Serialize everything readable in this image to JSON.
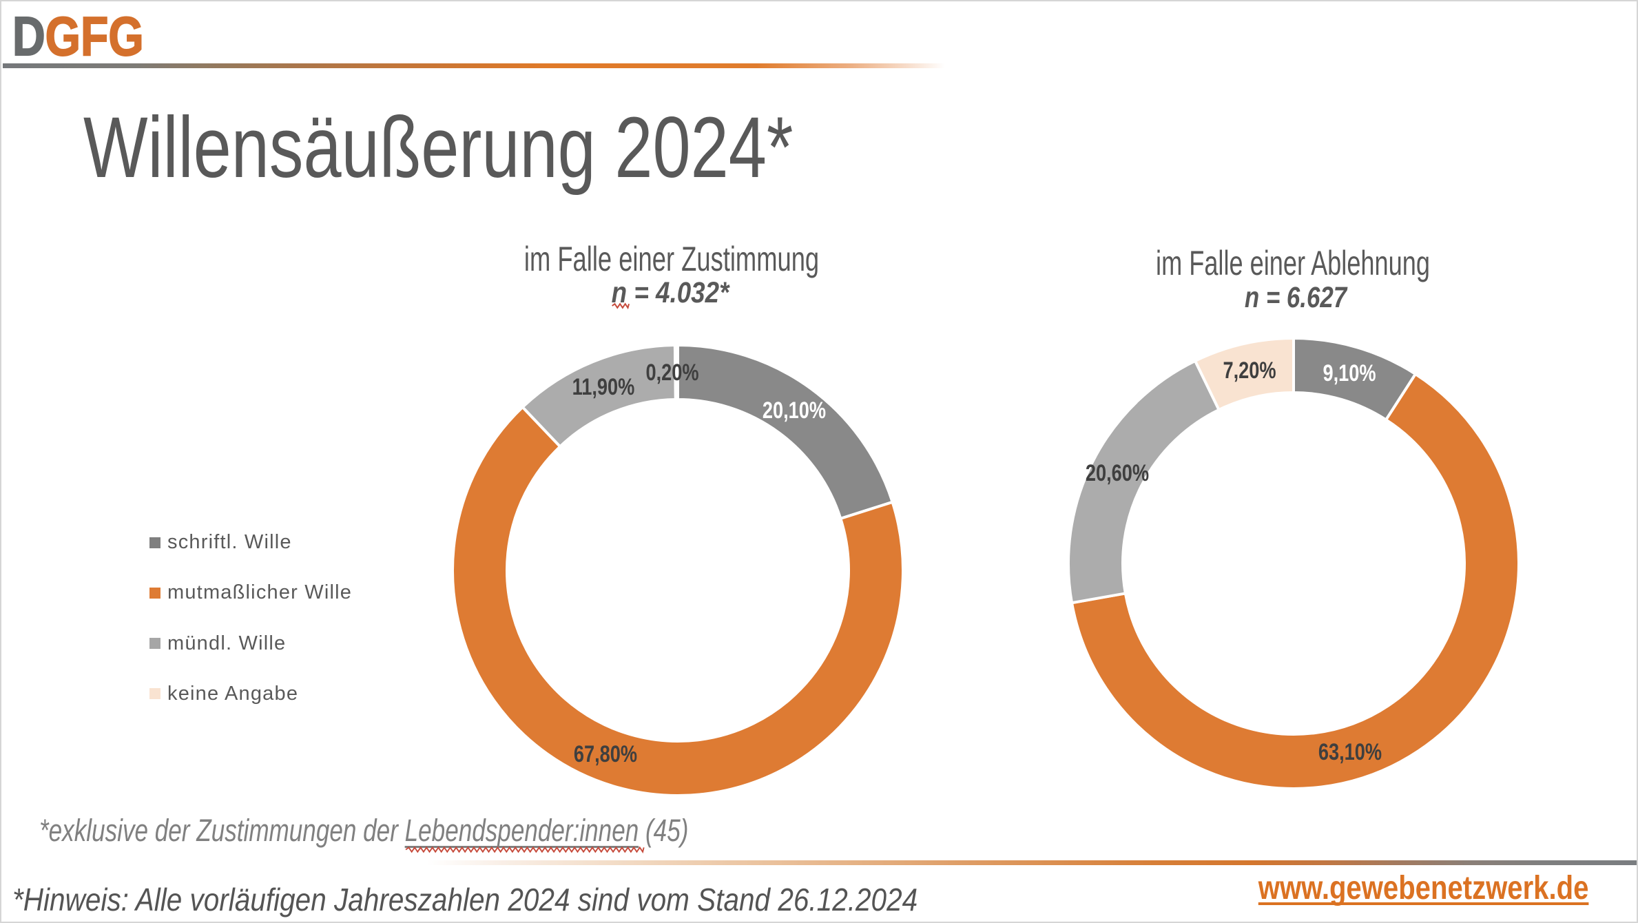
{
  "palette": {
    "logo_gray": "#686B6C",
    "logo_orange": "#D4702C",
    "title_gray": "#595959",
    "label_dark": "#3F3F3F",
    "label_light": "#FFFFFF",
    "website_orange": "#DB7222",
    "squiggle_red": "#C64A3B",
    "slice_dark_gray": "#898989",
    "slice_orange": "#DE7B33",
    "slice_light_gray": "#ACACAC",
    "slice_cream": "#F9E3D1",
    "legend_dark_gray": "#7F7F7F",
    "legend_orange": "#DE7B33",
    "legend_light_gray": "#A6A6A6",
    "legend_cream": "#F9E3D1"
  },
  "header": {
    "logo_prefix": "D",
    "logo_suffix": "GFG",
    "title": "Willensäußerung 2024*"
  },
  "legend": {
    "position": "left",
    "items": [
      {
        "label": "schriftl. Wille",
        "color": "#7F7F7F"
      },
      {
        "label": "mutmaßlicher Wille",
        "color": "#DE7B33"
      },
      {
        "label": "mündl. Wille",
        "color": "#A6A6A6"
      },
      {
        "label": "keine Angabe",
        "color": "#F9E3D1"
      }
    ]
  },
  "chart_data": [
    {
      "type": "pie",
      "variant": "donut",
      "title": "im Falle einer Zustimmung",
      "subtitle": "n = 4.032*",
      "subtitle_spellcheck_underline": true,
      "categories": [
        "schriftl. Wille",
        "mutmaßlicher Wille",
        "mündl. Wille",
        "keine Angabe"
      ],
      "values": [
        20.1,
        67.8,
        11.9,
        0.2
      ],
      "labels": [
        "20,10%",
        "67,80%",
        "11,90%",
        "0,20%"
      ],
      "colors": [
        "#898989",
        "#DE7B33",
        "#ACACAC",
        "#F9E3D1"
      ],
      "label_colors": [
        "#FFFFFF",
        "#3F3F3F",
        "#3F3F3F",
        "#3F3F3F"
      ],
      "hole": 0.76,
      "start_angle_deg": 0,
      "legend_position": "left"
    },
    {
      "type": "pie",
      "variant": "donut",
      "title": "im Falle einer Ablehnung",
      "subtitle": "n = 6.627",
      "subtitle_spellcheck_underline": false,
      "categories": [
        "schriftl. Wille",
        "mutmaßlicher Wille",
        "mündl. Wille",
        "keine Angabe"
      ],
      "values": [
        9.1,
        63.1,
        20.6,
        7.2
      ],
      "labels": [
        "9,10%",
        "63,10%",
        "20,60%",
        "7,20%"
      ],
      "colors": [
        "#898989",
        "#DE7B33",
        "#ACACAC",
        "#F9E3D1"
      ],
      "label_colors": [
        "#FFFFFF",
        "#3F3F3F",
        "#3F3F3F",
        "#3F3F3F"
      ],
      "hole": 0.76,
      "start_angle_deg": 0,
      "legend_position": "none"
    }
  ],
  "footnote": {
    "prefix": "*exklusive der Zustimmungen der ",
    "underlined": "Lebendspender:innen",
    "suffix": " (45)",
    "spellcheck_underline": true
  },
  "footer": {
    "hinweis": "*Hinweis: Alle vorläufigen Jahreszahlen 2024 sind vom Stand 26.12.2024",
    "website": "www.gewebenetzwerk.de"
  }
}
